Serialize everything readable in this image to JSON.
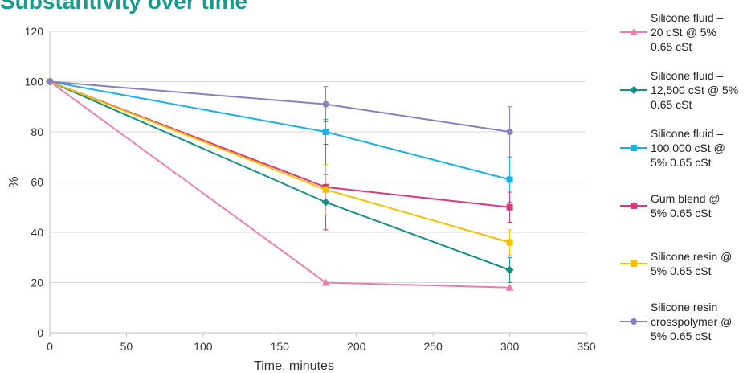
{
  "chart_data": {
    "type": "line",
    "title": "Substantivity over time",
    "xlabel": "Time, minutes",
    "ylabel": "%",
    "xlim": [
      0,
      350
    ],
    "ylim": [
      0,
      120
    ],
    "x_ticks": [
      "0",
      "50",
      "100",
      "150",
      "200",
      "250",
      "300",
      "350"
    ],
    "y_ticks": [
      "0",
      "20",
      "40",
      "60",
      "80",
      "100",
      "120"
    ],
    "grid": "horizontal",
    "legend": "right",
    "series": [
      {
        "name": "Silicone fluid – 20 cSt @ 5% 0.65 cSt",
        "color": "#e97fb0",
        "marker": "triangle",
        "x": [
          0,
          180,
          300
        ],
        "y": [
          100,
          20,
          18
        ],
        "err": [
          0,
          0,
          0
        ]
      },
      {
        "name": "Silicone fluid – 12,500 cSt @ 5% 0.65 cSt",
        "color": "#149184",
        "marker": "diamond",
        "x": [
          0,
          180,
          300
        ],
        "y": [
          100,
          52,
          25
        ],
        "err": [
          0,
          11,
          5
        ]
      },
      {
        "name": "Silicone fluid – 100,000 cSt @ 5% 0.65 cSt",
        "color": "#1ab0e8",
        "marker": "square",
        "x": [
          0,
          180,
          300
        ],
        "y": [
          100,
          80,
          61
        ],
        "err": [
          0,
          5,
          9
        ]
      },
      {
        "name": "Gum blend @ 5% 0.65 cSt",
        "color": "#d93a7f",
        "marker": "square",
        "x": [
          0,
          180,
          300
        ],
        "y": [
          100,
          58,
          50
        ],
        "err": [
          0,
          17,
          6
        ]
      },
      {
        "name": "Silicone resin @ 5% 0.65 cSt",
        "color": "#f5c000",
        "marker": "square",
        "x": [
          0,
          180,
          300
        ],
        "y": [
          100,
          57,
          36
        ],
        "err": [
          0,
          10,
          5
        ]
      },
      {
        "name": "Silicone resin crosspolymer @ 5% 0.65 cSt",
        "color": "#8a7fc0",
        "marker": "circle",
        "x": [
          0,
          180,
          300
        ],
        "y": [
          100,
          91,
          80
        ],
        "err": [
          0,
          7,
          10
        ]
      }
    ]
  },
  "legend_lines": [
    [
      "Silicone fluid –",
      "20 cSt @ 5%",
      "0.65 cSt"
    ],
    [
      "Silicone fluid –",
      "12,500 cSt @ 5%",
      "0.65 cSt"
    ],
    [
      "Silicone fluid –",
      "100,000 cSt @",
      "5% 0.65 cSt"
    ],
    [
      "Gum blend @",
      "5% 0.65 cSt"
    ],
    [
      "Silicone resin @",
      "5% 0.65 cSt"
    ],
    [
      "Silicone resin",
      "crosspolymer @",
      "5% 0.65 cSt"
    ]
  ]
}
